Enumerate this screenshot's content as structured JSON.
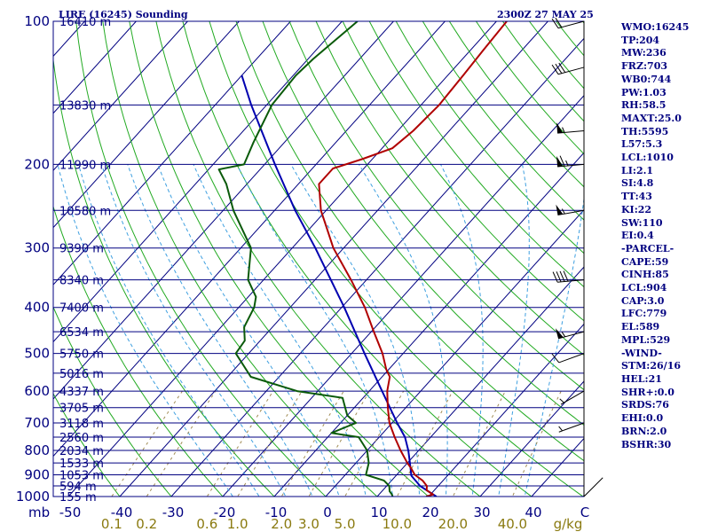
{
  "header": {
    "title": "LIRE (16245) Sounding",
    "time": "2300Z 27 MAY 25"
  },
  "indices": [
    "WMO:16245",
    "TP:204",
    "MW:236",
    "FRZ:703",
    "WB0:744",
    "PW:1.03",
    "RH:58.5",
    "MAXT:25.0",
    "TH:5595",
    "L57:5.3",
    "LCL:1010",
    "LI:2.1",
    "SI:4.8",
    "TT:43",
    "KI:22",
    "SW:110",
    "EI:0.4",
    "-PARCEL-",
    "CAPE:59",
    "CINH:85",
    "LCL:904",
    "CAP:3.0",
    "LFC:779",
    "EL:589",
    "MPL:529",
    "-WIND-",
    "STM:26/16",
    "HEL:21",
    "SHR+:0.0",
    "SRDS:76",
    "EHI:0.0",
    "BRN:2.0",
    "BSHR:30"
  ],
  "colors": {
    "axes": "#000080",
    "isobar": "#000080",
    "isotherm": "#000080",
    "dry_adiabat": "#22aa22",
    "moist_adiabat": "#3fa0e0",
    "mixing_ratio": "#a08c55",
    "temperature": "#b00000",
    "dewpoint": "#0a5a0a",
    "parcel": "#0000b0",
    "wind": "#000000",
    "mixing_ratio_labels": "#8a7a10"
  },
  "chart_data": {
    "type": "skew-t",
    "pressure_unit_label": "mb",
    "mixing_ratio_unit_label": "g/kg",
    "pressure_range_mb": [
      1000,
      100
    ],
    "pressure_ticks": [
      {
        "p": 100,
        "label": "100"
      },
      {
        "p": 200,
        "label": "200"
      },
      {
        "p": 300,
        "label": "300"
      },
      {
        "p": 400,
        "label": "400"
      },
      {
        "p": 500,
        "label": "500"
      },
      {
        "p": 600,
        "label": "600"
      },
      {
        "p": 700,
        "label": "700"
      },
      {
        "p": 800,
        "label": "800"
      },
      {
        "p": 900,
        "label": "900"
      },
      {
        "p": 1000,
        "label": "1000"
      }
    ],
    "height_levels": [
      {
        "p": 100,
        "label": "16410 m"
      },
      {
        "p": 150,
        "label": "13830 m"
      },
      {
        "p": 200,
        "label": "11990 m"
      },
      {
        "p": 250,
        "label": "10580 m"
      },
      {
        "p": 300,
        "label": "9390 m"
      },
      {
        "p": 350,
        "label": "8340 m"
      },
      {
        "p": 400,
        "label": "7400 m"
      },
      {
        "p": 450,
        "label": "6534 m"
      },
      {
        "p": 500,
        "label": "5750 m"
      },
      {
        "p": 550,
        "label": "5016 m"
      },
      {
        "p": 600,
        "label": "4337 m"
      },
      {
        "p": 650,
        "label": "3705 m"
      },
      {
        "p": 700,
        "label": "3118 m"
      },
      {
        "p": 750,
        "label": "2560 m"
      },
      {
        "p": 800,
        "label": "2034 m"
      },
      {
        "p": 850,
        "label": "1533 m"
      },
      {
        "p": 900,
        "label": "1053 m"
      },
      {
        "p": 950,
        "label": "594 m"
      },
      {
        "p": 1000,
        "label": "155 m"
      }
    ],
    "temperature_ticks_c": [
      {
        "t": -50,
        "label": "-50"
      },
      {
        "t": -40,
        "label": "-40"
      },
      {
        "t": -30,
        "label": "-30"
      },
      {
        "t": -20,
        "label": "-20"
      },
      {
        "t": -10,
        "label": "-10"
      },
      {
        "t": 0,
        "label": "0"
      },
      {
        "t": 10,
        "label": "10"
      },
      {
        "t": 20,
        "label": "20"
      },
      {
        "t": 30,
        "label": "30"
      },
      {
        "t": 40,
        "label": "40"
      },
      {
        "t": 50,
        "label": "C"
      }
    ],
    "mixing_ratio_ticks": [
      {
        "w": 0.1,
        "label": "0.1"
      },
      {
        "w": 0.2,
        "label": "0.2"
      },
      {
        "w": 0.6,
        "label": "0.6"
      },
      {
        "w": 1.0,
        "label": "1.0"
      },
      {
        "w": 2.0,
        "label": "2.0"
      },
      {
        "w": 3.0,
        "label": "3.0"
      },
      {
        "w": 5.0,
        "label": "5.0"
      },
      {
        "w": 10.0,
        "label": "10.0"
      },
      {
        "w": 20.0,
        "label": "20.0"
      },
      {
        "w": 40.0,
        "label": "40.0"
      }
    ],
    "temperature_profile": [
      {
        "p": 1000,
        "t": 19.5
      },
      {
        "p": 990,
        "t": 20.5
      },
      {
        "p": 970,
        "t": 18.5
      },
      {
        "p": 950,
        "t": 17.8
      },
      {
        "p": 925,
        "t": 16.0
      },
      {
        "p": 900,
        "t": 13.5
      },
      {
        "p": 870,
        "t": 11.5
      },
      {
        "p": 850,
        "t": 10.0
      },
      {
        "p": 800,
        "t": 6.5
      },
      {
        "p": 750,
        "t": 3.0
      },
      {
        "p": 700,
        "t": -0.5
      },
      {
        "p": 650,
        "t": -3.5
      },
      {
        "p": 600,
        "t": -6.5
      },
      {
        "p": 560,
        "t": -8.5
      },
      {
        "p": 540,
        "t": -10.5
      },
      {
        "p": 500,
        "t": -14.0
      },
      {
        "p": 450,
        "t": -19.5
      },
      {
        "p": 400,
        "t": -25.5
      },
      {
        "p": 350,
        "t": -33.0
      },
      {
        "p": 300,
        "t": -42.0
      },
      {
        "p": 250,
        "t": -51.0
      },
      {
        "p": 220,
        "t": -56.0
      },
      {
        "p": 204,
        "t": -56.0
      },
      {
        "p": 195,
        "t": -52.0
      },
      {
        "p": 185,
        "t": -48.0
      },
      {
        "p": 170,
        "t": -47.0
      },
      {
        "p": 150,
        "t": -46.5
      },
      {
        "p": 130,
        "t": -47.0
      },
      {
        "p": 115,
        "t": -47.5
      },
      {
        "p": 100,
        "t": -48.0
      }
    ],
    "dewpoint_profile": [
      {
        "p": 1000,
        "t": 13.0
      },
      {
        "p": 990,
        "t": 12.5
      },
      {
        "p": 975,
        "t": 11.5
      },
      {
        "p": 950,
        "t": 10.5
      },
      {
        "p": 925,
        "t": 8.5
      },
      {
        "p": 900,
        "t": 4.0
      },
      {
        "p": 850,
        "t": 2.5
      },
      {
        "p": 800,
        "t": 0.0
      },
      {
        "p": 750,
        "t": -4.0
      },
      {
        "p": 735,
        "t": -10.0
      },
      {
        "p": 700,
        "t": -7.0
      },
      {
        "p": 675,
        "t": -10.0
      },
      {
        "p": 620,
        "t": -14.0
      },
      {
        "p": 600,
        "t": -24.0
      },
      {
        "p": 560,
        "t": -35.5
      },
      {
        "p": 500,
        "t": -42.5
      },
      {
        "p": 470,
        "t": -43.0
      },
      {
        "p": 440,
        "t": -45.5
      },
      {
        "p": 400,
        "t": -47.0
      },
      {
        "p": 380,
        "t": -48.5
      },
      {
        "p": 350,
        "t": -53.0
      },
      {
        "p": 300,
        "t": -58.0
      },
      {
        "p": 250,
        "t": -68.0
      },
      {
        "p": 220,
        "t": -74.0
      },
      {
        "p": 205,
        "t": -78.0
      },
      {
        "p": 200,
        "t": -74.0
      },
      {
        "p": 180,
        "t": -76.0
      },
      {
        "p": 150,
        "t": -79.0
      },
      {
        "p": 130,
        "t": -79.5
      },
      {
        "p": 120,
        "t": -79.0
      },
      {
        "p": 100,
        "t": -77.0
      }
    ],
    "parcel_profile": [
      {
        "p": 1000,
        "t": 21.5
      },
      {
        "p": 950,
        "t": 16.5
      },
      {
        "p": 904,
        "t": 13.0
      },
      {
        "p": 850,
        "t": 10.5
      },
      {
        "p": 800,
        "t": 8.0
      },
      {
        "p": 750,
        "t": 5.0
      },
      {
        "p": 700,
        "t": 1.0
      },
      {
        "p": 600,
        "t": -7.5
      },
      {
        "p": 500,
        "t": -17.5
      },
      {
        "p": 400,
        "t": -29.5
      },
      {
        "p": 300,
        "t": -45.5
      },
      {
        "p": 250,
        "t": -56.0
      },
      {
        "p": 200,
        "t": -68.0
      },
      {
        "p": 150,
        "t": -83.0
      },
      {
        "p": 130,
        "t": -90.0
      }
    ],
    "wind_barbs": [
      {
        "p": 1000,
        "dir": 45,
        "kt": 2
      },
      {
        "p": 700,
        "dir": 250,
        "kt": 5
      },
      {
        "p": 600,
        "dir": 240,
        "kt": 5
      },
      {
        "p": 500,
        "dir": 250,
        "kt": 10
      },
      {
        "p": 450,
        "dir": 255,
        "kt": 55
      },
      {
        "p": 350,
        "dir": 265,
        "kt": 40
      },
      {
        "p": 250,
        "dir": 260,
        "kt": 55
      },
      {
        "p": 200,
        "dir": 265,
        "kt": 65
      },
      {
        "p": 170,
        "dir": 265,
        "kt": 55
      },
      {
        "p": 125,
        "dir": 255,
        "kt": 30
      },
      {
        "p": 100,
        "dir": 255,
        "kt": 20
      }
    ]
  }
}
